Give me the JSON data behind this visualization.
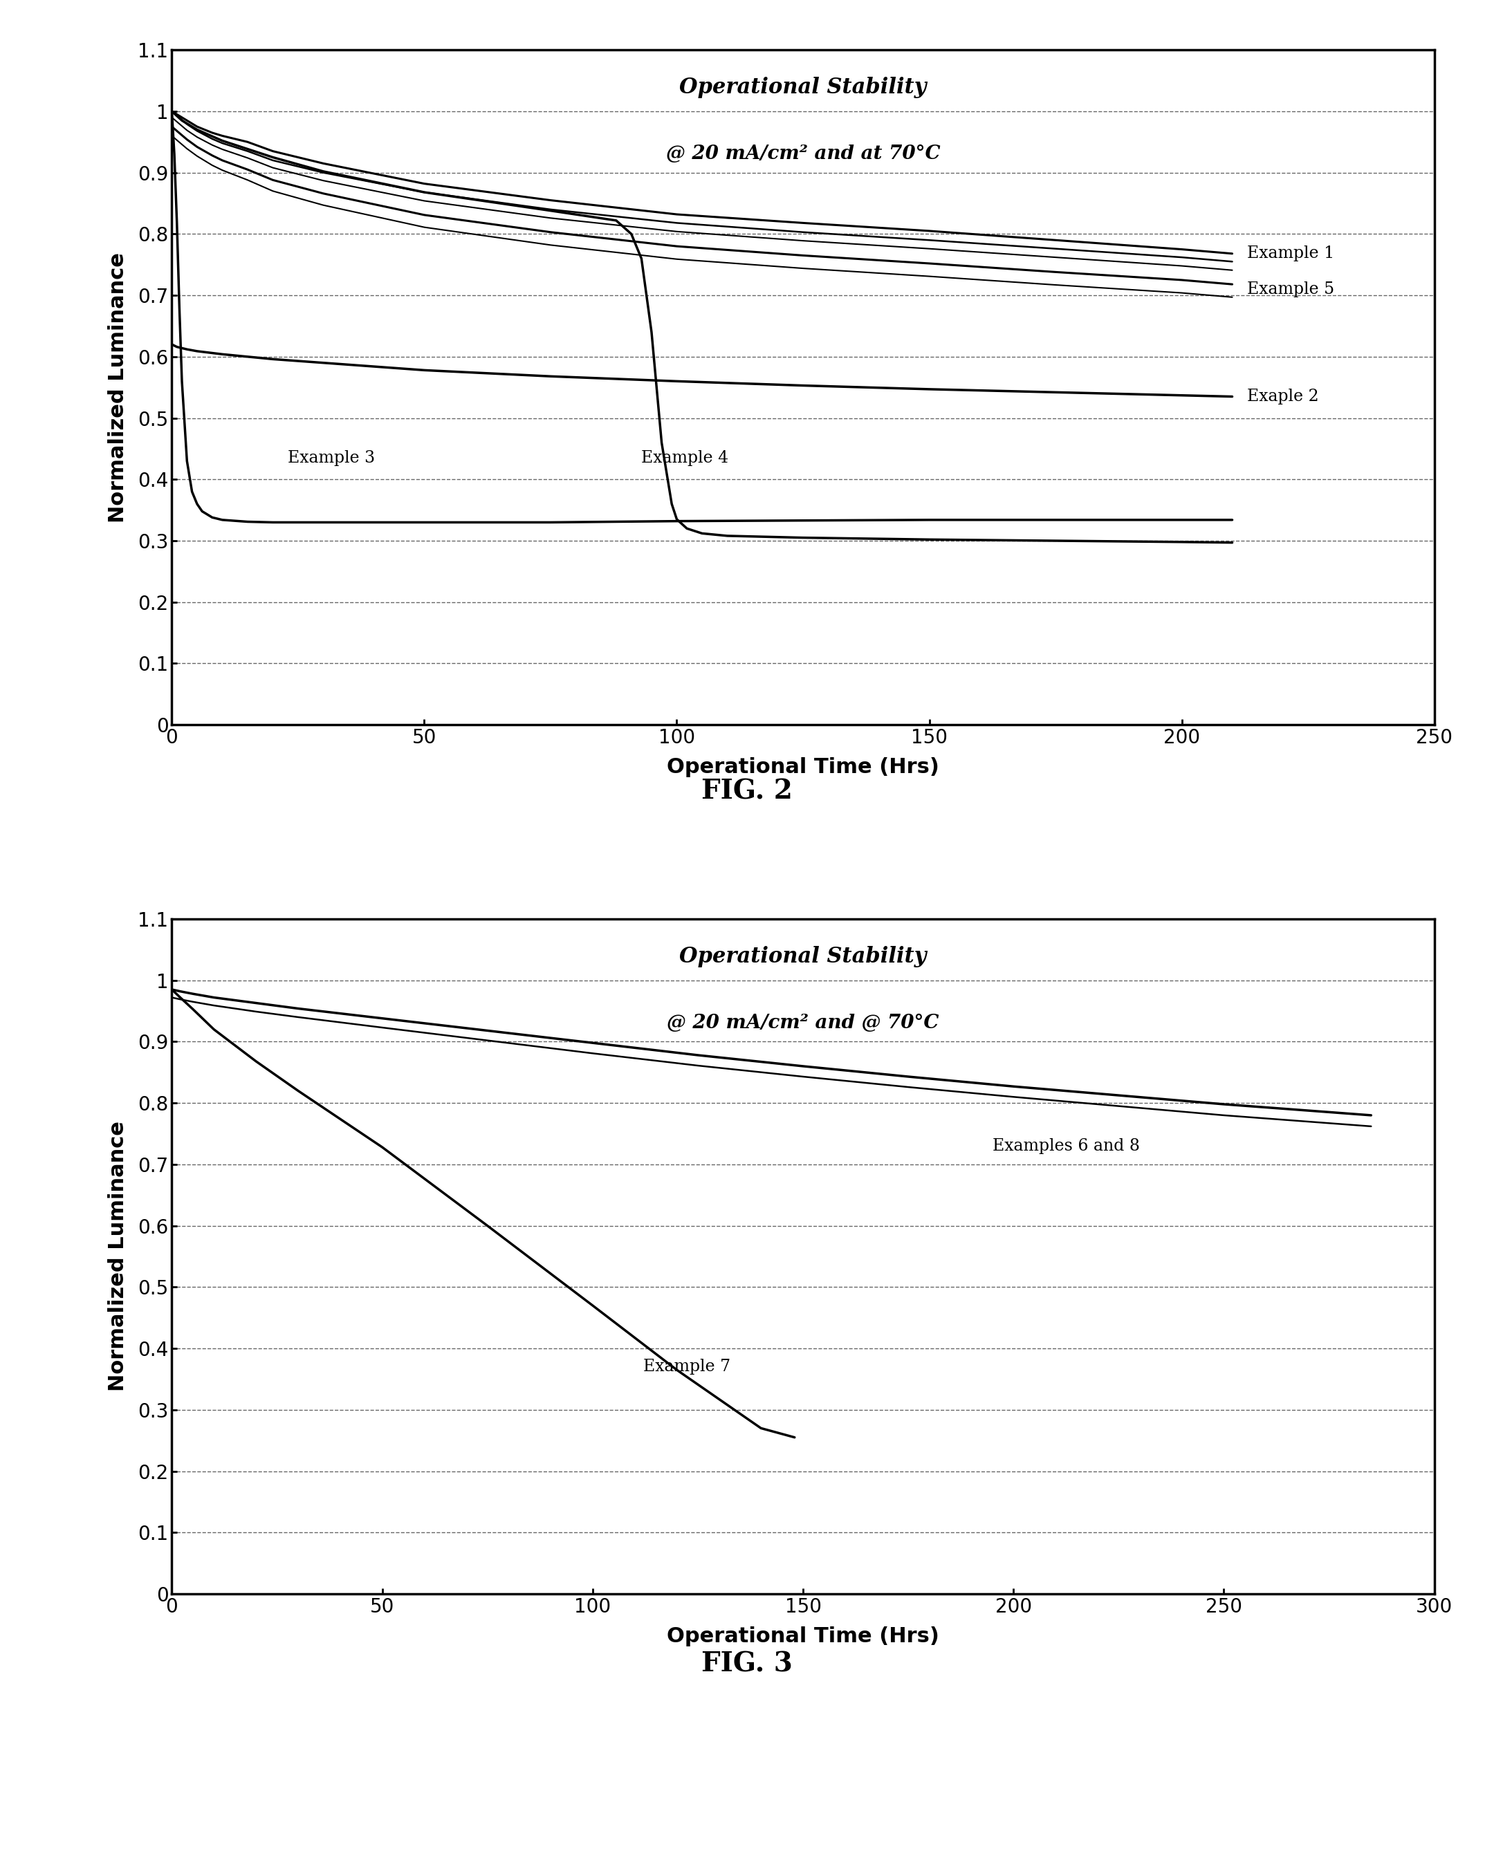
{
  "fig1": {
    "title_line1": "Operational Stability",
    "title_line2": "@ 20 mA/cm² and at 70°C",
    "xlabel": "Operational Time (Hrs)",
    "ylabel": "Normalized Luminance",
    "xlim": [
      0,
      250
    ],
    "ylim": [
      0,
      1.1
    ],
    "xticks": [
      0,
      50,
      100,
      150,
      200,
      250
    ],
    "yticks": [
      0,
      0.1,
      0.2,
      0.3,
      0.4,
      0.5,
      0.6,
      0.7,
      0.8,
      0.9,
      1.0,
      1.1
    ],
    "ytick_labels": [
      "0",
      "0.1",
      "0.2",
      "0.3",
      "0.4",
      "0.5",
      "0.6",
      "0.7",
      "0.8",
      "0.9",
      "1",
      "1.1"
    ],
    "fignum": "FIG. 2",
    "label_example1": "Example 1",
    "label_example5": "Example 5",
    "label_example2": "Exaple 2",
    "label_example3": "Example 3",
    "label_example4": "Example 4",
    "curves": {
      "example1a": {
        "x": [
          0,
          1,
          2,
          3,
          5,
          8,
          10,
          15,
          20,
          30,
          50,
          75,
          100,
          125,
          150,
          175,
          200,
          210
        ],
        "y": [
          1.0,
          0.995,
          0.99,
          0.985,
          0.975,
          0.965,
          0.96,
          0.95,
          0.935,
          0.915,
          0.882,
          0.855,
          0.832,
          0.818,
          0.805,
          0.79,
          0.775,
          0.768
        ],
        "lw": 2.2
      },
      "example1b": {
        "x": [
          0,
          1,
          2,
          3,
          5,
          8,
          10,
          15,
          20,
          30,
          50,
          75,
          100,
          125,
          150,
          175,
          200,
          210
        ],
        "y": [
          1.0,
          0.993,
          0.986,
          0.979,
          0.968,
          0.955,
          0.948,
          0.935,
          0.92,
          0.9,
          0.868,
          0.84,
          0.818,
          0.803,
          0.79,
          0.776,
          0.762,
          0.755
        ],
        "lw": 1.8
      },
      "example1c": {
        "x": [
          0,
          1,
          2,
          3,
          5,
          8,
          10,
          15,
          20,
          30,
          50,
          75,
          100,
          125,
          150,
          175,
          200,
          210
        ],
        "y": [
          0.99,
          0.983,
          0.976,
          0.969,
          0.958,
          0.945,
          0.938,
          0.924,
          0.908,
          0.887,
          0.854,
          0.826,
          0.804,
          0.789,
          0.776,
          0.762,
          0.748,
          0.741
        ],
        "lw": 1.5
      },
      "example5a": {
        "x": [
          0,
          1,
          2,
          3,
          5,
          8,
          10,
          15,
          20,
          30,
          50,
          75,
          100,
          125,
          150,
          175,
          200,
          210
        ],
        "y": [
          0.975,
          0.968,
          0.961,
          0.954,
          0.942,
          0.928,
          0.92,
          0.905,
          0.888,
          0.866,
          0.831,
          0.803,
          0.78,
          0.765,
          0.752,
          0.738,
          0.725,
          0.718
        ],
        "lw": 2.2
      },
      "example5b": {
        "x": [
          0,
          1,
          2,
          3,
          5,
          8,
          10,
          15,
          20,
          30,
          50,
          75,
          100,
          125,
          150,
          175,
          200,
          210
        ],
        "y": [
          0.96,
          0.953,
          0.946,
          0.939,
          0.927,
          0.912,
          0.904,
          0.888,
          0.87,
          0.847,
          0.811,
          0.782,
          0.759,
          0.744,
          0.731,
          0.717,
          0.704,
          0.697
        ],
        "lw": 1.5
      },
      "example2": {
        "x": [
          0,
          0.5,
          1,
          2,
          3,
          5,
          8,
          10,
          15,
          20,
          30,
          50,
          75,
          100,
          125,
          150,
          175,
          200,
          210
        ],
        "y": [
          0.62,
          0.618,
          0.616,
          0.614,
          0.612,
          0.609,
          0.606,
          0.604,
          0.6,
          0.596,
          0.59,
          0.578,
          0.568,
          0.56,
          0.553,
          0.547,
          0.542,
          0.537,
          0.535
        ],
        "lw": 2.5
      },
      "example3": {
        "x": [
          0,
          0.5,
          1.0,
          1.5,
          2,
          3,
          4,
          5,
          6,
          8,
          10,
          15,
          20,
          30,
          50,
          75,
          100,
          125,
          150,
          175,
          200,
          210
        ],
        "y": [
          1.0,
          0.93,
          0.82,
          0.68,
          0.56,
          0.43,
          0.38,
          0.36,
          0.348,
          0.338,
          0.334,
          0.331,
          0.33,
          0.33,
          0.33,
          0.33,
          0.332,
          0.333,
          0.334,
          0.334,
          0.334,
          0.334
        ],
        "lw": 2.5
      },
      "example4": {
        "x": [
          0,
          2,
          5,
          10,
          20,
          30,
          50,
          75,
          88,
          91,
          93,
          95,
          97,
          99,
          100,
          102,
          105,
          110,
          125,
          150,
          175,
          200,
          210
        ],
        "y": [
          1.0,
          0.985,
          0.97,
          0.952,
          0.925,
          0.902,
          0.868,
          0.838,
          0.822,
          0.8,
          0.76,
          0.64,
          0.46,
          0.36,
          0.335,
          0.32,
          0.312,
          0.308,
          0.305,
          0.302,
          0.3,
          0.298,
          0.297
        ],
        "lw": 2.5
      }
    }
  },
  "fig2": {
    "title_line1": "Operational Stability",
    "title_line2": "@ 20 mA/cm² and @ 70°C",
    "xlabel": "Operational Time (Hrs)",
    "ylabel": "Normalized Luminance",
    "xlim": [
      0,
      300
    ],
    "ylim": [
      0,
      1.1
    ],
    "xticks": [
      0,
      50,
      100,
      150,
      200,
      250,
      300
    ],
    "yticks": [
      0,
      0.1,
      0.2,
      0.3,
      0.4,
      0.5,
      0.6,
      0.7,
      0.8,
      0.9,
      1.0,
      1.1
    ],
    "ytick_labels": [
      "0",
      "0.1",
      "0.2",
      "0.3",
      "0.4",
      "0.5",
      "0.6",
      "0.7",
      "0.8",
      "0.9",
      "1",
      "1.1"
    ],
    "fignum": "FIG. 3",
    "label_ex68": "Examples 6 and 8",
    "label_ex7": "Example 7",
    "curves": {
      "ex68a": {
        "x": [
          0,
          2,
          5,
          10,
          20,
          30,
          50,
          75,
          100,
          125,
          150,
          175,
          200,
          250,
          285
        ],
        "y": [
          0.985,
          0.982,
          0.978,
          0.972,
          0.963,
          0.954,
          0.938,
          0.918,
          0.898,
          0.878,
          0.86,
          0.843,
          0.827,
          0.798,
          0.78
        ],
        "lw": 2.5
      },
      "ex68b": {
        "x": [
          0,
          2,
          5,
          10,
          20,
          30,
          50,
          75,
          100,
          125,
          150,
          175,
          200,
          250,
          285
        ],
        "y": [
          0.972,
          0.969,
          0.965,
          0.959,
          0.949,
          0.94,
          0.923,
          0.902,
          0.881,
          0.861,
          0.843,
          0.826,
          0.81,
          0.78,
          0.762
        ],
        "lw": 1.8
      },
      "ex7": {
        "x": [
          0,
          2,
          5,
          10,
          20,
          30,
          50,
          75,
          100,
          120,
          140,
          148
        ],
        "y": [
          0.985,
          0.972,
          0.953,
          0.92,
          0.868,
          0.82,
          0.728,
          0.6,
          0.47,
          0.365,
          0.27,
          0.255
        ],
        "lw": 2.5
      }
    }
  }
}
